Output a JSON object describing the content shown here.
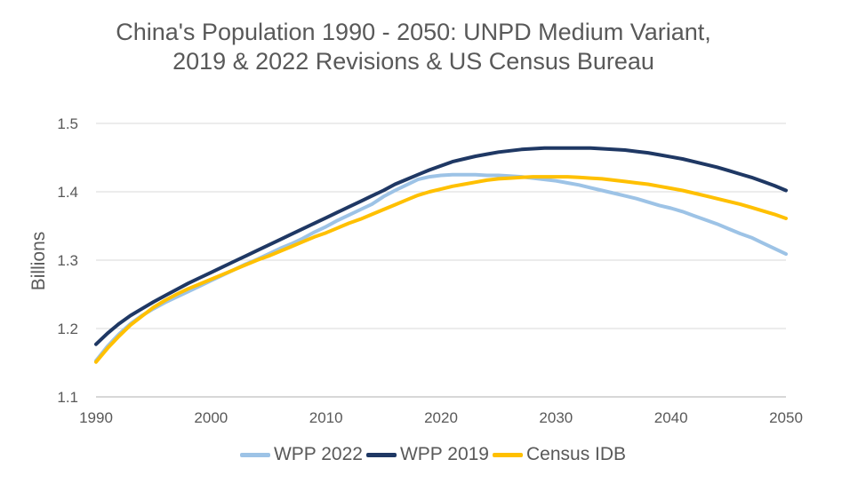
{
  "chart_data": {
    "type": "line",
    "title_lines": [
      "China's Population 1990 - 2050: UNPD Medium Variant,",
      "2019 & 2022 Revisions & US Census Bureau"
    ],
    "xlabel": "",
    "ylabel": "Billions",
    "xlim": [
      1990,
      2050
    ],
    "ylim": [
      1.1,
      1.5
    ],
    "x_ticks": [
      1990,
      2000,
      2010,
      2020,
      2030,
      2040,
      2050
    ],
    "y_ticks": [
      "1.1",
      "1.2",
      "1.3",
      "1.4",
      "1.5"
    ],
    "grid": "horizontal",
    "legend_position": "bottom",
    "x": [
      1990,
      1991,
      1992,
      1993,
      1994,
      1995,
      1996,
      1997,
      1998,
      1999,
      2000,
      2001,
      2002,
      2003,
      2004,
      2005,
      2006,
      2007,
      2008,
      2009,
      2010,
      2011,
      2012,
      2013,
      2014,
      2015,
      2016,
      2017,
      2018,
      2019,
      2020,
      2021,
      2022,
      2023,
      2024,
      2025,
      2026,
      2027,
      2028,
      2029,
      2030,
      2031,
      2032,
      2033,
      2034,
      2035,
      2036,
      2037,
      2038,
      2039,
      2040,
      2041,
      2042,
      2043,
      2044,
      2045,
      2046,
      2047,
      2048,
      2049,
      2050
    ],
    "series": [
      {
        "name": "WPP 2022",
        "color": "#9dc3e6",
        "values": [
          1.153,
          1.174,
          1.192,
          1.207,
          1.219,
          1.229,
          1.238,
          1.246,
          1.254,
          1.262,
          1.27,
          1.278,
          1.286,
          1.294,
          1.301,
          1.309,
          1.317,
          1.324,
          1.332,
          1.341,
          1.349,
          1.358,
          1.366,
          1.374,
          1.382,
          1.393,
          1.402,
          1.41,
          1.418,
          1.422,
          1.424,
          1.425,
          1.425,
          1.425,
          1.424,
          1.424,
          1.423,
          1.422,
          1.42,
          1.418,
          1.416,
          1.413,
          1.41,
          1.406,
          1.402,
          1.398,
          1.394,
          1.39,
          1.385,
          1.38,
          1.376,
          1.371,
          1.365,
          1.359,
          1.353,
          1.346,
          1.339,
          1.333,
          1.325,
          1.317,
          1.309
        ]
      },
      {
        "name": "WPP 2019",
        "color": "#1f3864",
        "values": [
          1.177,
          1.193,
          1.207,
          1.219,
          1.229,
          1.239,
          1.248,
          1.257,
          1.266,
          1.274,
          1.282,
          1.29,
          1.298,
          1.306,
          1.314,
          1.322,
          1.33,
          1.338,
          1.346,
          1.354,
          1.362,
          1.37,
          1.378,
          1.386,
          1.394,
          1.402,
          1.411,
          1.418,
          1.425,
          1.432,
          1.438,
          1.444,
          1.448,
          1.452,
          1.455,
          1.458,
          1.46,
          1.462,
          1.463,
          1.464,
          1.464,
          1.464,
          1.464,
          1.464,
          1.463,
          1.462,
          1.461,
          1.459,
          1.457,
          1.454,
          1.451,
          1.448,
          1.444,
          1.44,
          1.436,
          1.431,
          1.426,
          1.421,
          1.415,
          1.409,
          1.402
        ]
      },
      {
        "name": "Census IDB",
        "color": "#ffc000",
        "values": [
          1.151,
          1.171,
          1.189,
          1.205,
          1.218,
          1.231,
          1.241,
          1.25,
          1.258,
          1.265,
          1.272,
          1.279,
          1.286,
          1.293,
          1.3,
          1.306,
          1.313,
          1.32,
          1.327,
          1.334,
          1.34,
          1.347,
          1.354,
          1.36,
          1.367,
          1.374,
          1.381,
          1.388,
          1.395,
          1.4,
          1.404,
          1.408,
          1.411,
          1.414,
          1.417,
          1.419,
          1.42,
          1.421,
          1.422,
          1.422,
          1.422,
          1.422,
          1.421,
          1.42,
          1.419,
          1.417,
          1.415,
          1.413,
          1.411,
          1.408,
          1.405,
          1.402,
          1.398,
          1.394,
          1.39,
          1.386,
          1.382,
          1.377,
          1.372,
          1.367,
          1.361
        ]
      }
    ]
  }
}
